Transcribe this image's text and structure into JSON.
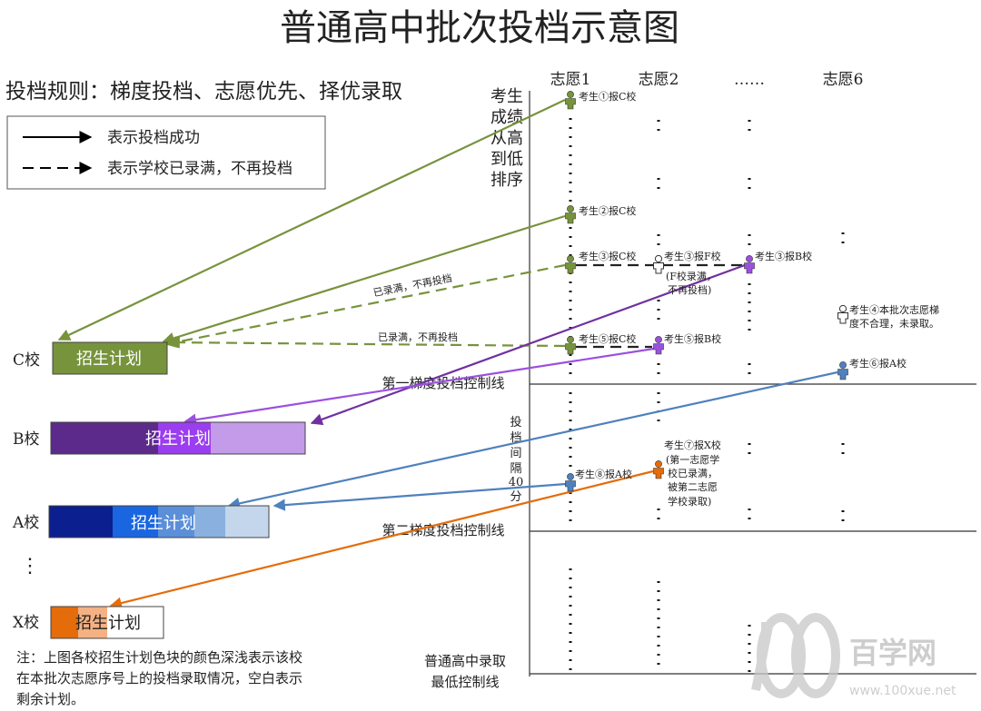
{
  "title": "普通高中批次投档示意图",
  "rule": "投档规则：梯度投档、志愿优先、择优录取",
  "legend": {
    "solid": "表示投档成功",
    "dashed": "表示学校已录满，不再投档"
  },
  "rank_axis_label": [
    "考生",
    "成绩",
    "从高",
    "到低",
    "排序"
  ],
  "choices": [
    "志愿1",
    "志愿2",
    "……",
    "志愿6"
  ],
  "schools": [
    {
      "name": "C校",
      "bar_label": "招生计划"
    },
    {
      "name": "B校",
      "bar_label": "招生计划"
    },
    {
      "name": "A校",
      "bar_label": "招生计划"
    },
    {
      "name": "X校",
      "bar_label": "招生计划"
    }
  ],
  "school_dots": "⋮",
  "students": {
    "s1": "考生①报C校",
    "s2": "考生②报C校",
    "s3a": "考生③报C校",
    "s3b": "考生③报F校",
    "s3c": "考生③报B校",
    "s3_note": [
      "(F校录满，",
      "不再投档)"
    ],
    "s4": [
      "考生④本批次志愿梯",
      "度不合理，未录取。"
    ],
    "s5a": "考生⑤报C校",
    "s5b": "考生⑤报B校",
    "s6": "考生⑥报A校",
    "s7": [
      "考生⑦报X校",
      "(第一志愿学",
      "校已录满，",
      "被第二志愿",
      "学校录取)"
    ],
    "s8": "考生⑧报A校"
  },
  "full_labels": [
    "已录满，不再投档",
    "已录满，不再投档"
  ],
  "lines": {
    "line1": "第一梯度投档控制线",
    "line2": "第二梯度投档控制线",
    "minimum": [
      "普通高中录取",
      "最低控制线"
    ]
  },
  "interval_label": [
    "投",
    "档",
    "间",
    "隔",
    "40",
    "分"
  ],
  "note": [
    "注：上图各校招生计划色块的颜色深浅表示该校",
    "在本批次志愿序号上的投档录取情况，空白表示",
    "剩余计划。"
  ],
  "watermark": {
    "text": "百学网",
    "url": "www.100xue.net"
  },
  "colors": {
    "green": "#77933c",
    "purple": "#7030a0",
    "purple_light": "#9b50e0",
    "blue": "#4f81bd",
    "orange": "#e46c0a"
  }
}
